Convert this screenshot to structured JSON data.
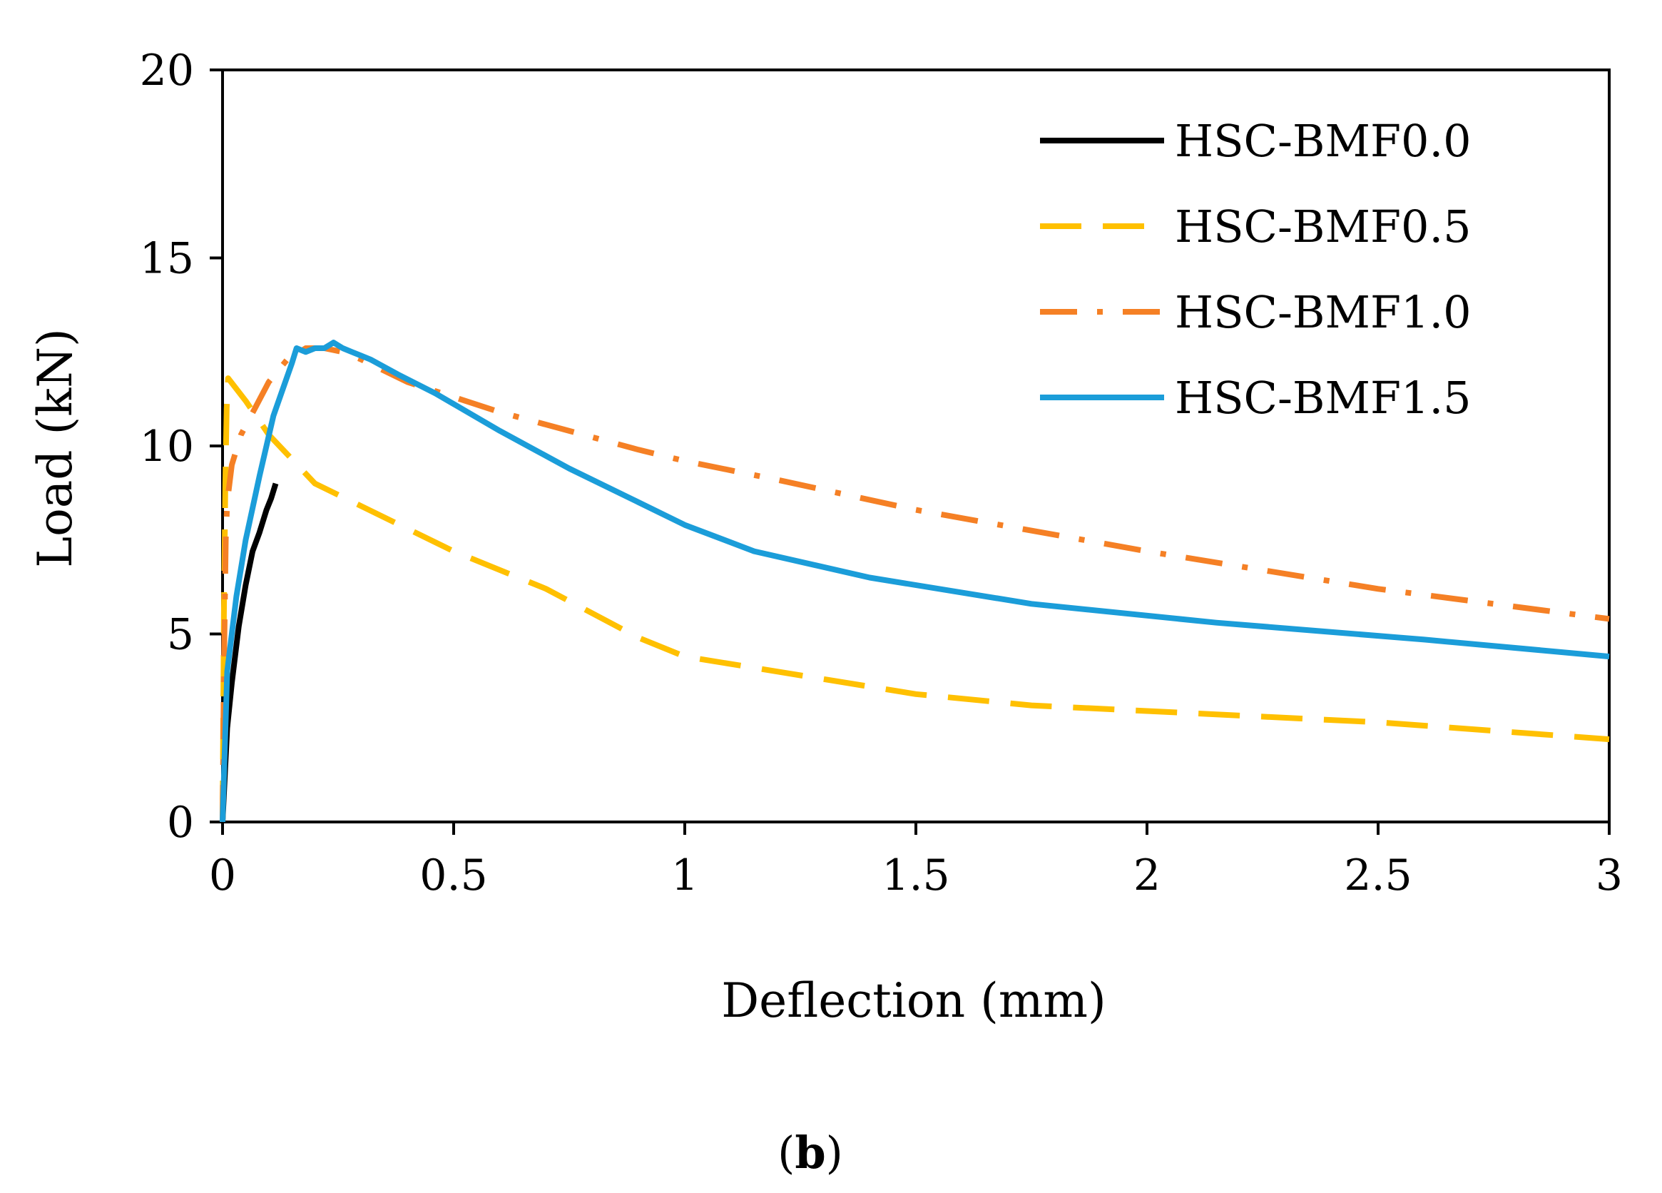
{
  "chart_data": {
    "type": "line",
    "title": "",
    "xlabel": "Deflection (mm)",
    "ylabel": "Load (kN)",
    "xlim": [
      0,
      3
    ],
    "ylim": [
      0,
      20
    ],
    "xticks": [
      0,
      0.5,
      1,
      1.5,
      2,
      2.5,
      3
    ],
    "xtick_labels": [
      "0",
      "0.5",
      "1",
      "1.5",
      "2",
      "2.5",
      "3"
    ],
    "yticks": [
      0,
      5,
      10,
      15,
      20
    ],
    "ytick_labels": [
      "0",
      "5",
      "10",
      "15",
      "20"
    ],
    "grid": false,
    "legend_position": "top-right",
    "subfigure_label": {
      "open": "(",
      "letter": "b",
      "close": ")"
    },
    "series": [
      {
        "name": "HSC-BMF0.0",
        "color": "#000000",
        "dash": "solid",
        "x": [
          0,
          0.01,
          0.02,
          0.035,
          0.05,
          0.065,
          0.08,
          0.095,
          0.105,
          0.115
        ],
        "y": [
          0,
          2.5,
          3.7,
          5.2,
          6.3,
          7.2,
          7.7,
          8.3,
          8.6,
          9.0
        ]
      },
      {
        "name": "HSC-BMF0.5",
        "color": "#FFC000",
        "dash": "dashed",
        "x": [
          0,
          0.003,
          0.006,
          0.009,
          0.012,
          0.05,
          0.1,
          0.2,
          0.3,
          0.5,
          0.7,
          0.9,
          1.0,
          1.2,
          1.5,
          1.75,
          2.0,
          2.5,
          3.0
        ],
        "y": [
          0,
          5.5,
          9.0,
          11.0,
          11.8,
          11.2,
          10.3,
          9.0,
          8.4,
          7.2,
          6.2,
          4.9,
          4.4,
          4.0,
          3.4,
          3.1,
          2.95,
          2.65,
          2.2
        ]
      },
      {
        "name": "HSC-BMF1.0",
        "color": "#F58025",
        "dash": "dashdot",
        "x": [
          0,
          0.003,
          0.007,
          0.01,
          0.02,
          0.04,
          0.07,
          0.1,
          0.14,
          0.18,
          0.22,
          0.26,
          0.3,
          0.35,
          0.4,
          0.5,
          0.6,
          0.75,
          0.9,
          1.0,
          1.2,
          1.5,
          2.0,
          2.5,
          3.0
        ],
        "y": [
          0,
          4.0,
          7.5,
          8.5,
          9.5,
          10.3,
          11.0,
          11.7,
          12.3,
          12.6,
          12.6,
          12.5,
          12.3,
          12.0,
          11.7,
          11.3,
          10.9,
          10.4,
          9.9,
          9.6,
          9.1,
          8.3,
          7.2,
          6.2,
          5.4
        ]
      },
      {
        "name": "HSC-BMF1.5",
        "color": "#1B9DD9",
        "dash": "solid",
        "x": [
          0,
          0.01,
          0.03,
          0.05,
          0.08,
          0.11,
          0.13,
          0.15,
          0.16,
          0.18,
          0.2,
          0.22,
          0.24,
          0.26,
          0.28,
          0.32,
          0.38,
          0.46,
          0.6,
          0.75,
          0.9,
          1.0,
          1.15,
          1.4,
          1.75,
          2.15,
          2.6,
          3.0
        ],
        "y": [
          0,
          4.0,
          6.0,
          7.5,
          9.2,
          10.8,
          11.5,
          12.2,
          12.6,
          12.5,
          12.6,
          12.6,
          12.75,
          12.6,
          12.5,
          12.3,
          11.9,
          11.4,
          10.4,
          9.4,
          8.5,
          7.9,
          7.2,
          6.5,
          5.8,
          5.3,
          4.85,
          4.4
        ]
      }
    ]
  }
}
